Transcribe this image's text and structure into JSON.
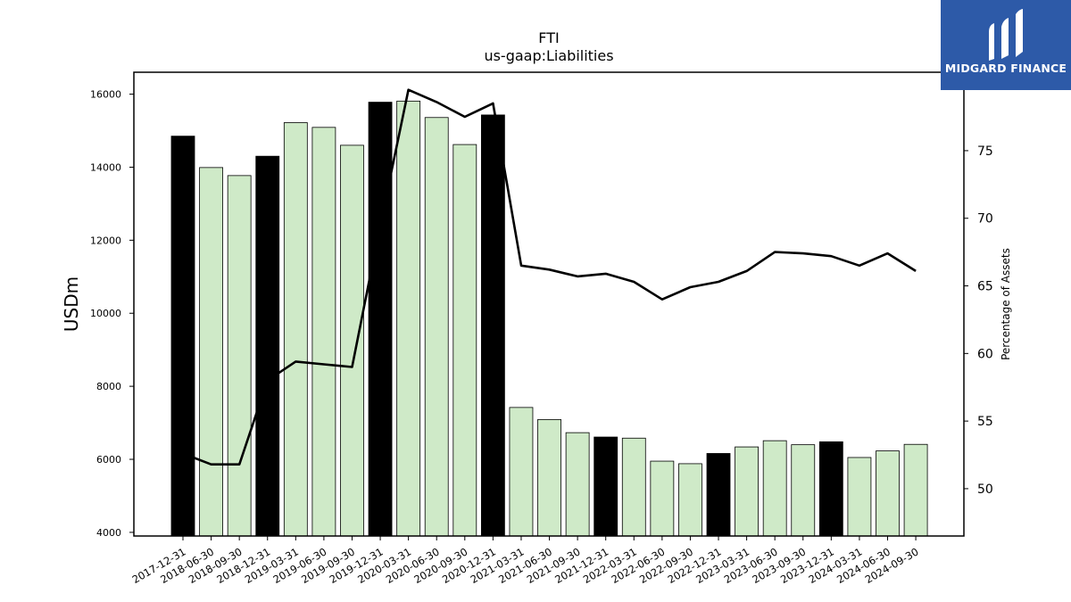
{
  "chart_data": {
    "type": "bar",
    "title": "FTI",
    "subtitle": "us-gaap:Liabilities",
    "ylabel": "USDm",
    "y2label": "Percentage of Assets",
    "ylim": [
      3900,
      16600
    ],
    "y2lim": [
      46.5,
      80.8
    ],
    "yticks": [
      4000,
      6000,
      8000,
      10000,
      12000,
      14000,
      16000
    ],
    "y2ticks": [
      50,
      55,
      60,
      65,
      70,
      75
    ],
    "categories": [
      "2017-12-31",
      "2018-06-30",
      "2018-09-30",
      "2018-12-31",
      "2019-03-31",
      "2019-06-30",
      "2019-09-30",
      "2019-12-31",
      "2020-03-31",
      "2020-06-30",
      "2020-09-30",
      "2020-12-31",
      "2021-03-31",
      "2021-06-30",
      "2021-09-30",
      "2021-12-31",
      "2022-03-31",
      "2022-06-30",
      "2022-09-30",
      "2022-12-31",
      "2023-03-31",
      "2023-06-30",
      "2023-09-30",
      "2023-12-31",
      "2024-03-31",
      "2024-06-30",
      "2024-09-30"
    ],
    "values": [
      14850,
      13990,
      13770,
      14300,
      15220,
      15090,
      14600,
      15780,
      15810,
      15360,
      14620,
      15430,
      7420,
      7090,
      6730,
      6610,
      6580,
      5950,
      5880,
      6160,
      6340,
      6510,
      6400,
      6480,
      6050,
      6230,
      6410
    ],
    "year_end": [
      true,
      false,
      false,
      true,
      false,
      false,
      false,
      true,
      false,
      false,
      false,
      true,
      false,
      false,
      false,
      true,
      false,
      false,
      false,
      true,
      false,
      false,
      false,
      true,
      false,
      false,
      false
    ],
    "percent_of_assets": [
      52.6,
      51.8,
      51.8,
      58.0,
      59.4,
      59.2,
      59.0,
      69.5,
      79.5,
      78.6,
      77.5,
      78.5,
      66.5,
      66.2,
      65.7,
      65.9,
      65.3,
      64.0,
      64.9,
      65.3,
      66.1,
      67.5,
      67.4,
      67.2,
      66.5,
      67.4,
      66.1
    ],
    "colors": {
      "year_end_bar": "#000000",
      "quarter_bar": "#cfeac8",
      "bar_edge": "#000000",
      "line": "#000000"
    },
    "legend": "none",
    "grid": false
  },
  "logo": {
    "text": "MIDGARD FINANCE",
    "background": "#2d5aa8"
  }
}
